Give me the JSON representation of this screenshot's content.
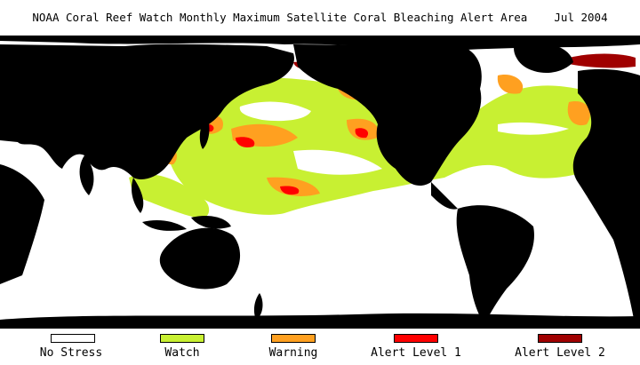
{
  "title": "NOAA Coral Reef Watch Monthly Maximum Satellite Coral Bleaching Alert Area",
  "date": "Jul 2004",
  "legend": [
    {
      "label": "No Stress",
      "color": "#ffffff"
    },
    {
      "label": "Watch",
      "color": "#c8f032"
    },
    {
      "label": "Warning",
      "color": "#ffa020"
    },
    {
      "label": "Alert Level 1",
      "color": "#ff0000"
    },
    {
      "label": "Alert Level 2",
      "color": "#a00000"
    }
  ],
  "colors": {
    "land": "#000000",
    "ocean_no_stress": "#ffffff"
  }
}
